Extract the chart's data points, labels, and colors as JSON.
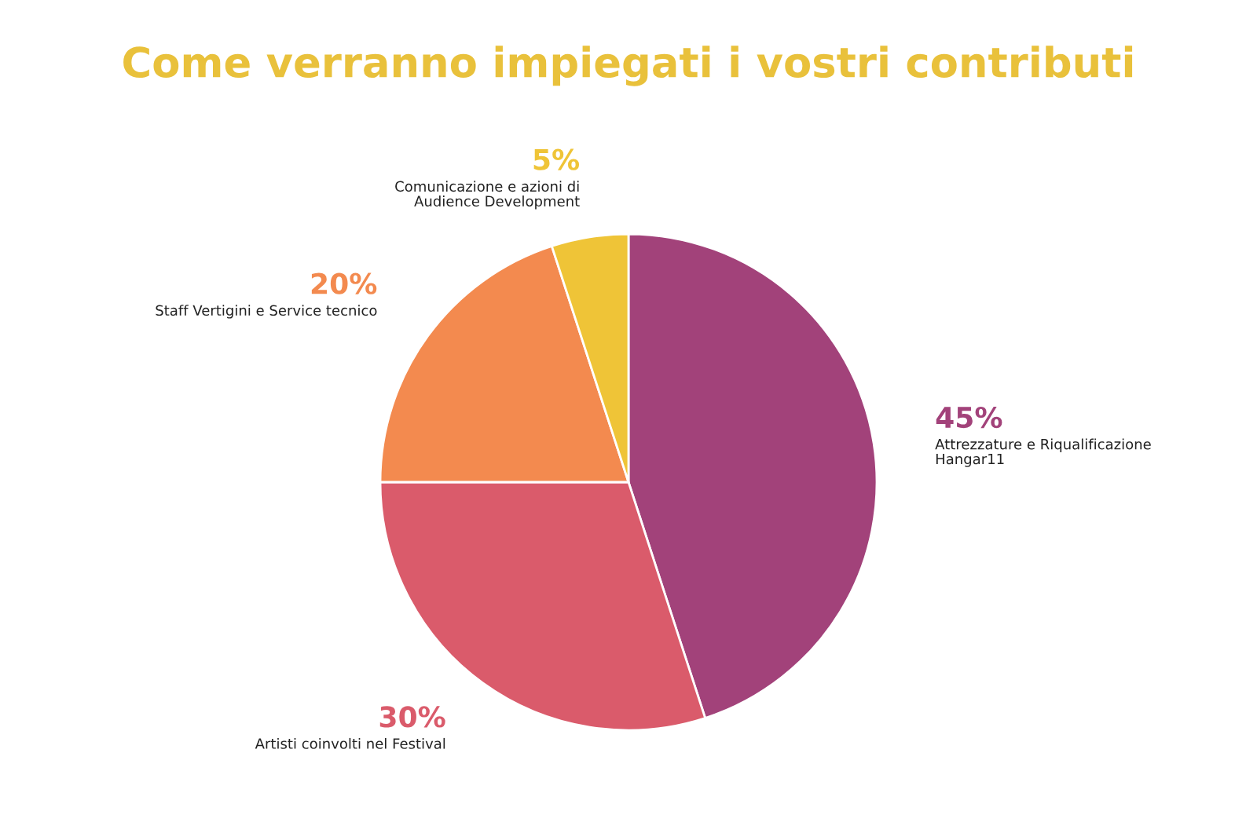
{
  "chart_data": {
    "type": "pie",
    "title": "Come verranno impiegati i vostri contributi",
    "categories": [
      "Attrezzature e Riqualificazione\nHangar11",
      "Artisti coinvolti nel Festival",
      "Staff Vertigini e Service tecnico",
      "Comunicazione e azioni di\nAudience Development"
    ],
    "values": [
      45,
      30,
      20,
      5
    ],
    "value_labels": [
      "45%",
      "30%",
      "20%",
      "5%"
    ],
    "colors": [
      "#a2427a",
      "#da5b6b",
      "#f38a4f",
      "#efc437"
    ]
  }
}
